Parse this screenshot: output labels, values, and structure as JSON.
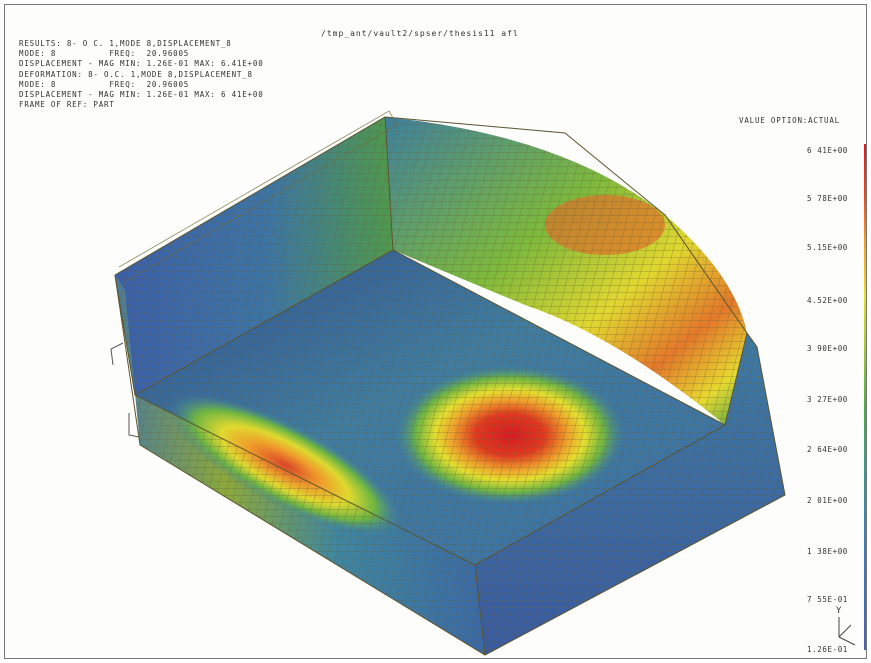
{
  "window": {
    "path": "/tmp_ant/vault2/spser/thesis11 afl"
  },
  "info": {
    "lines": [
      "RESULTS: 8- O C. 1,MODE 8,DISPLACEMENT_8",
      "MODE: 8          FREQ:  20.96005",
      "DISPLACEMENT - MAG MIN: 1.26E-01 MAX: 6.41E+00",
      "DEFORMATION: 8- O.C. 1,MODE 8,DISPLACEMENT_8",
      "MODE: 8          FREQ:  20.96005",
      "DISPLACEMENT - MAG MIN: 1.26E-01 MAX: 6 41E+00",
      "FRAME OF REF: PART"
    ]
  },
  "legend": {
    "title": "VALUE OPTION:ACTUAL",
    "ticks": [
      "6 41E+00",
      "5 78E+00",
      "5.15E+00",
      "4.52E+00",
      "3 90E+00",
      "3 27E+00",
      "2 64E+00",
      "2 01E+00",
      "1 38E+00",
      "7 55E-01",
      "1.26E-01"
    ]
  },
  "triad": {
    "y_label": "Y"
  },
  "colors": {
    "max": "#d51a24",
    "high": "#f0a32a",
    "mid_high": "#e6df2c",
    "mid": "#4fab45",
    "low": "#3f79b8",
    "min": "#4a5fae",
    "mesh": "#7a6a3a"
  }
}
